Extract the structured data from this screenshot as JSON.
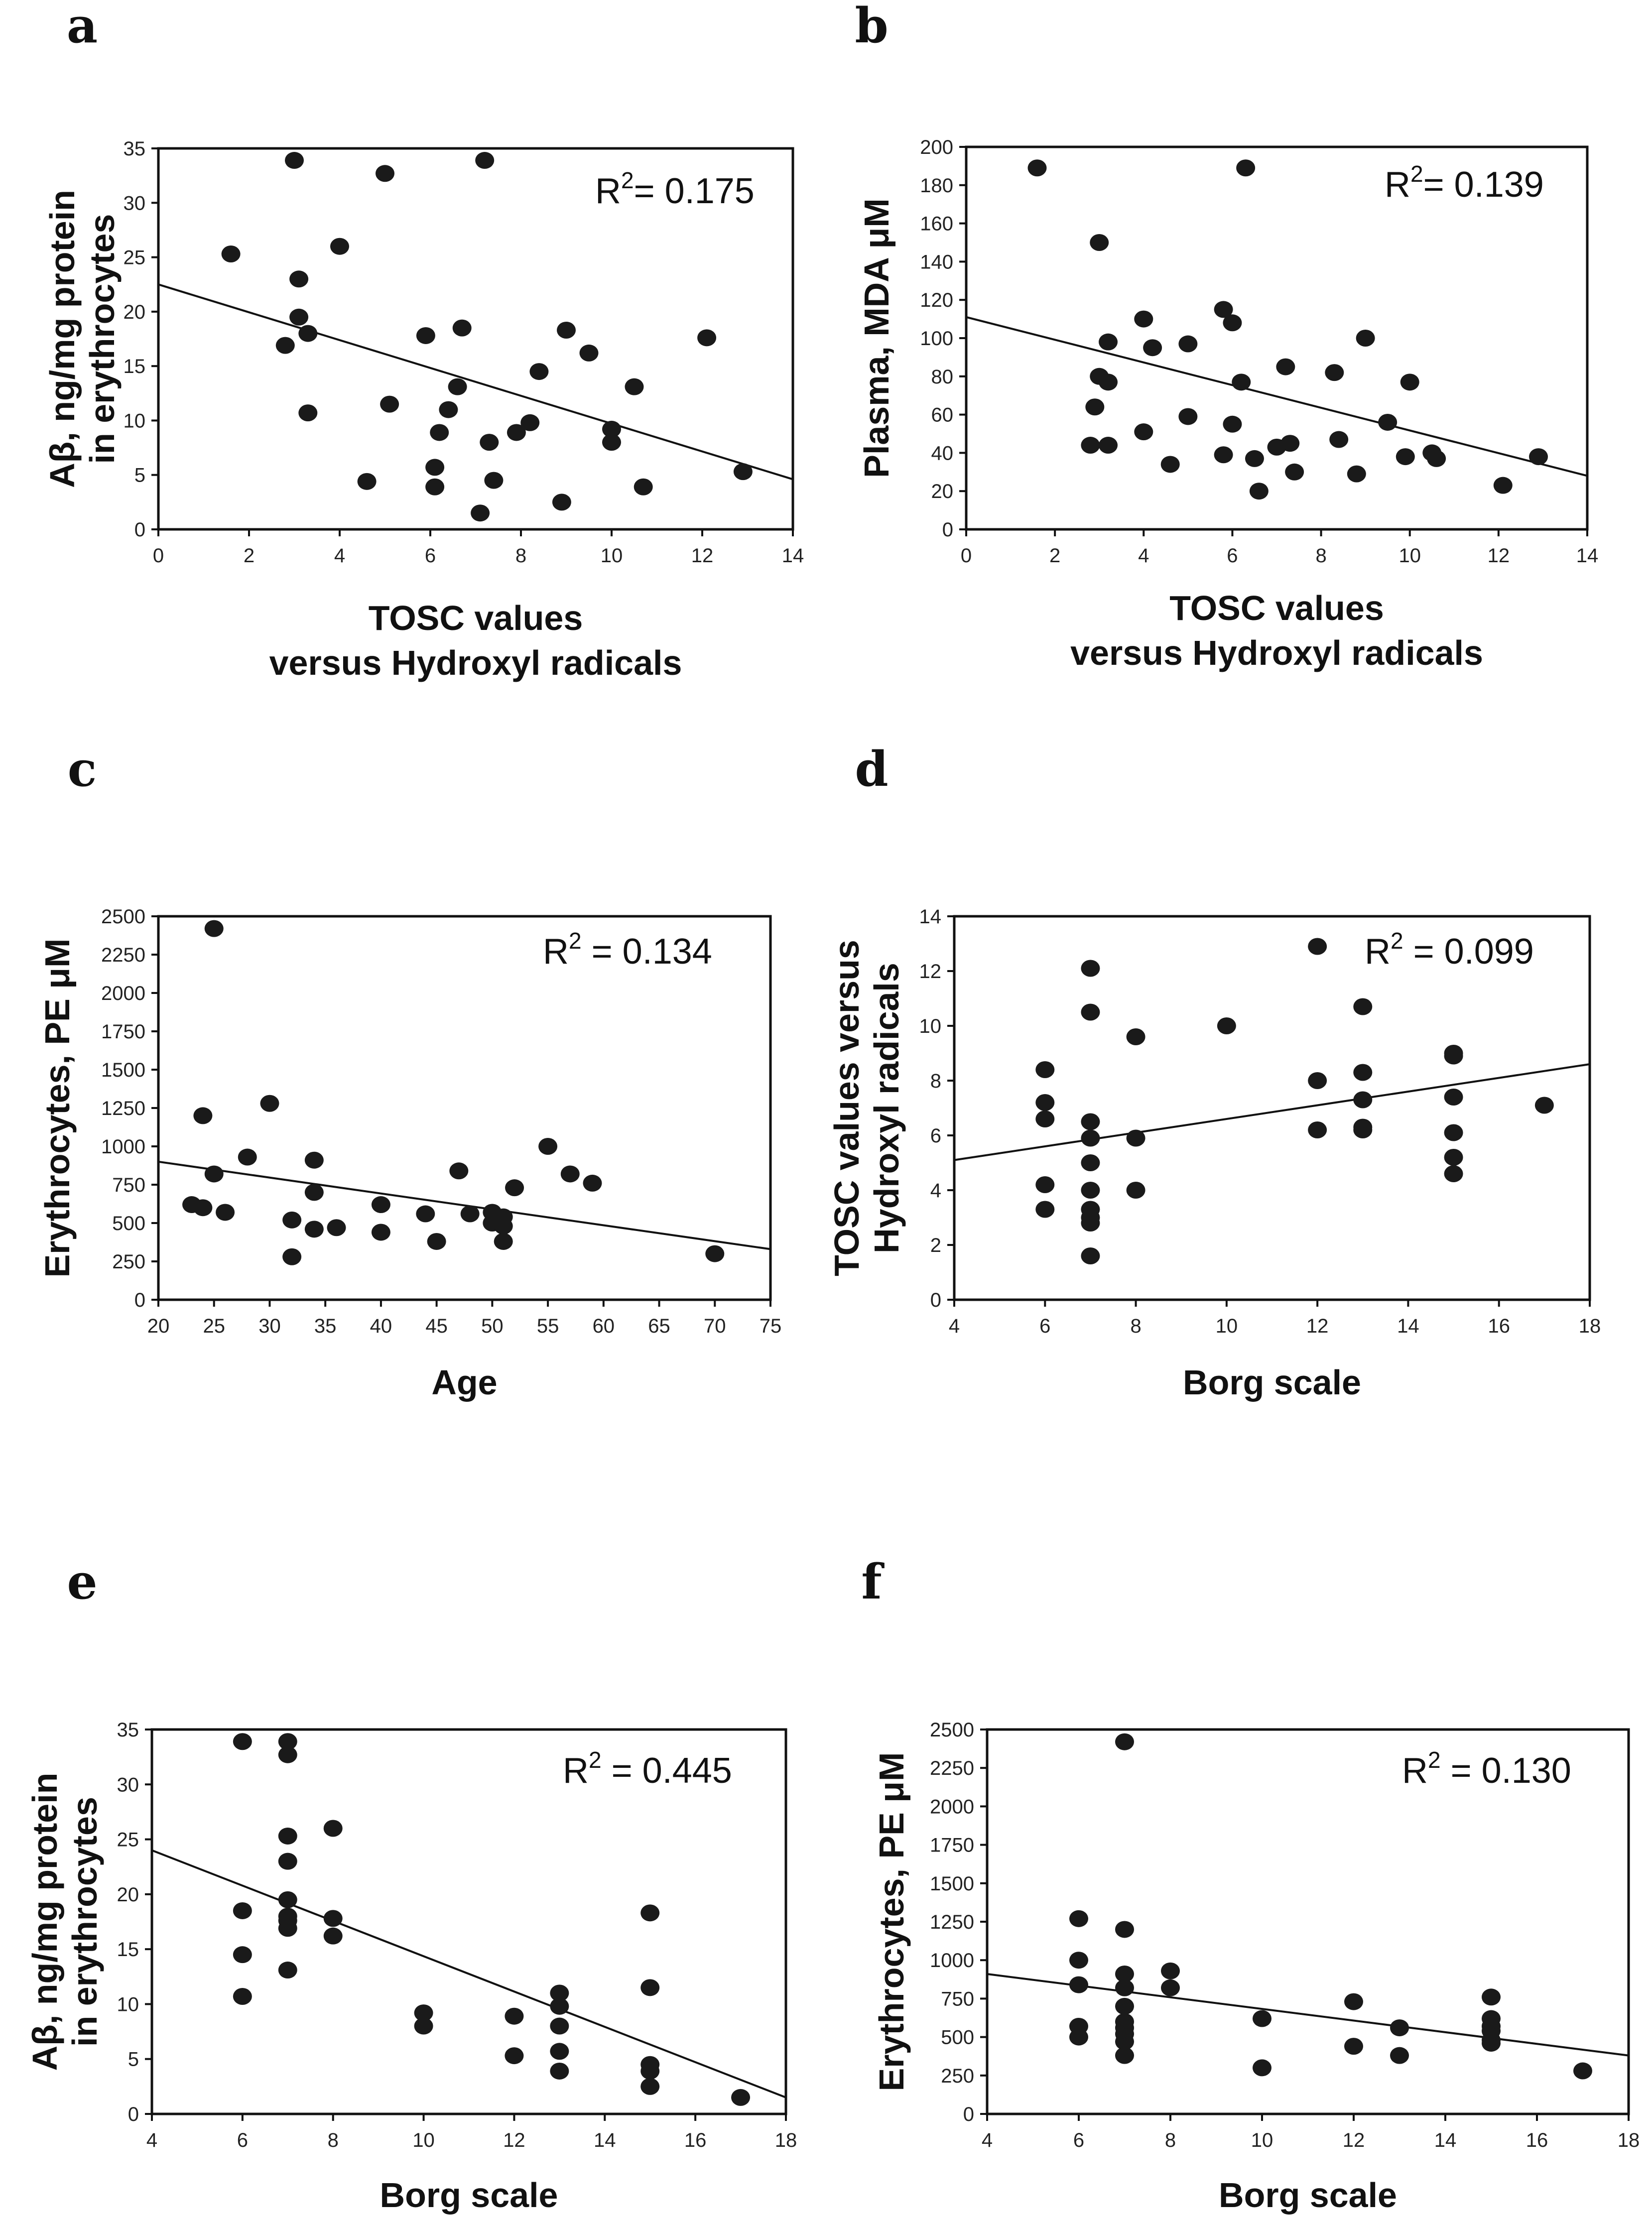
{
  "chart_data": [
    {
      "type": "scatter",
      "panel": "a",
      "xlabel": [
        "TOSC values",
        "versus Hydroxyl radicals"
      ],
      "ylabel": [
        "Aβ, ng/mg protein",
        "in erythrocytes"
      ],
      "xlim": [
        0,
        14
      ],
      "ylim": [
        0,
        35
      ],
      "xticks": [
        0,
        2,
        4,
        6,
        8,
        10,
        12,
        14
      ],
      "yticks": [
        0,
        5,
        10,
        15,
        20,
        25,
        30,
        35
      ],
      "r2_label": "R",
      "r2_sup": "2",
      "r2_value": "= 0.175",
      "fit": {
        "x": [
          0,
          14
        ],
        "y": [
          22.5,
          4.6
        ]
      },
      "points": [
        [
          1.6,
          25.3
        ],
        [
          2.8,
          16.9
        ],
        [
          3.0,
          33.9
        ],
        [
          3.1,
          23.0
        ],
        [
          3.1,
          19.5
        ],
        [
          3.3,
          18.0
        ],
        [
          3.3,
          10.7
        ],
        [
          4.0,
          26.0
        ],
        [
          4.6,
          4.4
        ],
        [
          5.0,
          32.7
        ],
        [
          5.1,
          11.5
        ],
        [
          5.9,
          17.8
        ],
        [
          6.1,
          5.7
        ],
        [
          6.1,
          3.9
        ],
        [
          6.2,
          8.9
        ],
        [
          6.4,
          11.0
        ],
        [
          6.6,
          13.1
        ],
        [
          6.7,
          18.5
        ],
        [
          7.1,
          1.5
        ],
        [
          7.2,
          33.9
        ],
        [
          7.3,
          8.0
        ],
        [
          7.4,
          4.5
        ],
        [
          7.9,
          8.9
        ],
        [
          8.2,
          9.8
        ],
        [
          8.4,
          14.5
        ],
        [
          8.9,
          2.5
        ],
        [
          9.0,
          18.3
        ],
        [
          9.5,
          16.2
        ],
        [
          10.0,
          9.2
        ],
        [
          10.0,
          8.0
        ],
        [
          10.5,
          13.1
        ],
        [
          10.7,
          3.9
        ],
        [
          12.1,
          17.6
        ],
        [
          12.9,
          5.3
        ]
      ]
    },
    {
      "type": "scatter",
      "panel": "b",
      "xlabel": [
        "TOSC values",
        "versus Hydroxyl radicals"
      ],
      "ylabel": [
        "Plasma, MDA μM"
      ],
      "xlim": [
        0,
        14
      ],
      "ylim": [
        0,
        200
      ],
      "xticks": [
        0,
        2,
        4,
        6,
        8,
        10,
        12,
        14
      ],
      "yticks": [
        0,
        20,
        40,
        60,
        80,
        100,
        120,
        140,
        160,
        180,
        200
      ],
      "r2_label": "R",
      "r2_sup": "2",
      "r2_value": "= 0.139",
      "fit": {
        "x": [
          0,
          14
        ],
        "y": [
          111,
          28
        ]
      },
      "points": [
        [
          1.6,
          189
        ],
        [
          2.8,
          44
        ],
        [
          2.9,
          64
        ],
        [
          3.0,
          80
        ],
        [
          3.0,
          150
        ],
        [
          3.2,
          77
        ],
        [
          3.2,
          98
        ],
        [
          3.2,
          44
        ],
        [
          4.0,
          110
        ],
        [
          4.0,
          51
        ],
        [
          4.2,
          95
        ],
        [
          4.6,
          34
        ],
        [
          5.0,
          97
        ],
        [
          5.0,
          59
        ],
        [
          5.8,
          115
        ],
        [
          5.8,
          39
        ],
        [
          6.0,
          108
        ],
        [
          6.0,
          55
        ],
        [
          6.2,
          77
        ],
        [
          6.3,
          189
        ],
        [
          6.5,
          37
        ],
        [
          6.6,
          20
        ],
        [
          7.0,
          43
        ],
        [
          7.2,
          85
        ],
        [
          7.3,
          45
        ],
        [
          7.4,
          30
        ],
        [
          8.3,
          82
        ],
        [
          8.4,
          47
        ],
        [
          8.8,
          29
        ],
        [
          9.0,
          100
        ],
        [
          9.5,
          56
        ],
        [
          9.9,
          38
        ],
        [
          10.0,
          77
        ],
        [
          10.5,
          40
        ],
        [
          10.6,
          37
        ],
        [
          12.1,
          23
        ],
        [
          12.9,
          38
        ]
      ]
    },
    {
      "type": "scatter",
      "panel": "c",
      "xlabel": [
        "Age"
      ],
      "ylabel": [
        "Erythrocytes, PE μM"
      ],
      "xlim": [
        20,
        75
      ],
      "ylim": [
        0,
        2500
      ],
      "xticks": [
        20,
        25,
        30,
        35,
        40,
        45,
        50,
        55,
        60,
        65,
        70,
        75
      ],
      "yticks": [
        0,
        250,
        500,
        750,
        1000,
        1250,
        1500,
        1750,
        2000,
        2250,
        2500
      ],
      "r2_label": "R",
      "r2_sup": "2",
      "r2_value": " = 0.134",
      "fit": {
        "x": [
          20,
          75
        ],
        "y": [
          900,
          330
        ]
      },
      "points": [
        [
          23,
          620
        ],
        [
          24,
          1200
        ],
        [
          24,
          600
        ],
        [
          25,
          2420
        ],
        [
          25,
          820
        ],
        [
          26,
          570
        ],
        [
          28,
          930
        ],
        [
          30,
          1280
        ],
        [
          32,
          520
        ],
        [
          32,
          280
        ],
        [
          34,
          910
        ],
        [
          34,
          700
        ],
        [
          34,
          460
        ],
        [
          36,
          470
        ],
        [
          40,
          620
        ],
        [
          40,
          440
        ],
        [
          44,
          560
        ],
        [
          45,
          380
        ],
        [
          47,
          840
        ],
        [
          48,
          560
        ],
        [
          50,
          570
        ],
        [
          50,
          500
        ],
        [
          51,
          540
        ],
        [
          51,
          480
        ],
        [
          51,
          380
        ],
        [
          52,
          730
        ],
        [
          55,
          1000
        ],
        [
          57,
          820
        ],
        [
          59,
          760
        ],
        [
          70,
          300
        ]
      ]
    },
    {
      "type": "scatter",
      "panel": "d",
      "xlabel": [
        "Borg scale"
      ],
      "ylabel": [
        "TOSC values versus",
        "Hydroxyl radicals"
      ],
      "xlim": [
        4,
        18
      ],
      "ylim": [
        0,
        14
      ],
      "xticks": [
        4,
        6,
        8,
        10,
        12,
        14,
        16,
        18
      ],
      "yticks": [
        0,
        2,
        4,
        6,
        8,
        10,
        12,
        14
      ],
      "r2_label": "R",
      "r2_sup": "2",
      "r2_value": " = 0.099",
      "fit": {
        "x": [
          4,
          18
        ],
        "y": [
          5.1,
          8.6
        ]
      },
      "points": [
        [
          6,
          8.4
        ],
        [
          6,
          7.2
        ],
        [
          6,
          6.6
        ],
        [
          6,
          4.2
        ],
        [
          6,
          3.3
        ],
        [
          7,
          12.1
        ],
        [
          7,
          10.5
        ],
        [
          7,
          6.5
        ],
        [
          7,
          5.9
        ],
        [
          7,
          5.0
        ],
        [
          7,
          4.0
        ],
        [
          7,
          3.3
        ],
        [
          7,
          3.0
        ],
        [
          7,
          2.8
        ],
        [
          7,
          1.6
        ],
        [
          8,
          9.6
        ],
        [
          8,
          5.9
        ],
        [
          8,
          4.0
        ],
        [
          10,
          10.0
        ],
        [
          12,
          12.9
        ],
        [
          12,
          8.0
        ],
        [
          12,
          6.2
        ],
        [
          13,
          10.7
        ],
        [
          13,
          8.3
        ],
        [
          13,
          7.3
        ],
        [
          13,
          6.3
        ],
        [
          13,
          6.2
        ],
        [
          15,
          9.0
        ],
        [
          15,
          8.9
        ],
        [
          15,
          7.4
        ],
        [
          15,
          6.1
        ],
        [
          15,
          5.2
        ],
        [
          15,
          4.6
        ],
        [
          17,
          7.1
        ]
      ]
    },
    {
      "type": "scatter",
      "panel": "e",
      "xlabel": [
        "Borg scale"
      ],
      "ylabel": [
        "Aβ, ng/mg protein",
        "in erythrocytes"
      ],
      "xlim": [
        4,
        18
      ],
      "ylim": [
        0,
        35
      ],
      "xticks": [
        4,
        6,
        8,
        10,
        12,
        14,
        16,
        18
      ],
      "yticks": [
        0,
        5,
        10,
        15,
        20,
        25,
        30,
        35
      ],
      "r2_label": "R",
      "r2_sup": "2",
      "r2_value": " = 0.445",
      "fit": {
        "x": [
          4,
          18
        ],
        "y": [
          24.0,
          1.5
        ]
      },
      "points": [
        [
          6,
          33.9
        ],
        [
          6,
          18.5
        ],
        [
          6,
          14.5
        ],
        [
          6,
          10.7
        ],
        [
          7,
          33.9
        ],
        [
          7,
          32.7
        ],
        [
          7,
          25.3
        ],
        [
          7,
          23.0
        ],
        [
          7,
          19.5
        ],
        [
          7,
          18.0
        ],
        [
          7,
          17.6
        ],
        [
          7,
          16.9
        ],
        [
          7,
          13.1
        ],
        [
          8,
          26.0
        ],
        [
          8,
          17.8
        ],
        [
          8,
          16.2
        ],
        [
          10,
          9.2
        ],
        [
          10,
          8.0
        ],
        [
          12,
          8.9
        ],
        [
          12,
          5.3
        ],
        [
          13,
          11.0
        ],
        [
          13,
          9.8
        ],
        [
          13,
          8.0
        ],
        [
          13,
          5.7
        ],
        [
          13,
          3.9
        ],
        [
          15,
          18.3
        ],
        [
          15,
          11.5
        ],
        [
          15,
          4.5
        ],
        [
          15,
          3.9
        ],
        [
          15,
          2.5
        ],
        [
          17,
          1.5
        ]
      ]
    },
    {
      "type": "scatter",
      "panel": "f",
      "xlabel": [
        "Borg scale"
      ],
      "ylabel": [
        "Erythrocytes, PE μM"
      ],
      "xlim": [
        4,
        18
      ],
      "ylim": [
        0,
        2500
      ],
      "xticks": [
        4,
        6,
        8,
        10,
        12,
        14,
        16,
        18
      ],
      "yticks": [
        0,
        250,
        500,
        750,
        1000,
        1250,
        1500,
        1750,
        2000,
        2250,
        2500
      ],
      "r2_label": "R",
      "r2_sup": "2",
      "r2_value": " = 0.130",
      "fit": {
        "x": [
          4,
          18
        ],
        "y": [
          910,
          380
        ]
      },
      "points": [
        [
          6,
          1270
        ],
        [
          6,
          1000
        ],
        [
          6,
          840
        ],
        [
          6,
          570
        ],
        [
          6,
          500
        ],
        [
          7,
          2420
        ],
        [
          7,
          1200
        ],
        [
          7,
          910
        ],
        [
          7,
          820
        ],
        [
          7,
          700
        ],
        [
          7,
          600
        ],
        [
          7,
          560
        ],
        [
          7,
          520
        ],
        [
          7,
          470
        ],
        [
          7,
          380
        ],
        [
          8,
          930
        ],
        [
          8,
          820
        ],
        [
          10,
          620
        ],
        [
          10,
          300
        ],
        [
          12,
          730
        ],
        [
          12,
          440
        ],
        [
          13,
          560
        ],
        [
          13,
          380
        ],
        [
          15,
          760
        ],
        [
          15,
          620
        ],
        [
          15,
          570
        ],
        [
          15,
          540
        ],
        [
          15,
          480
        ],
        [
          15,
          460
        ],
        [
          17,
          280
        ]
      ]
    }
  ]
}
